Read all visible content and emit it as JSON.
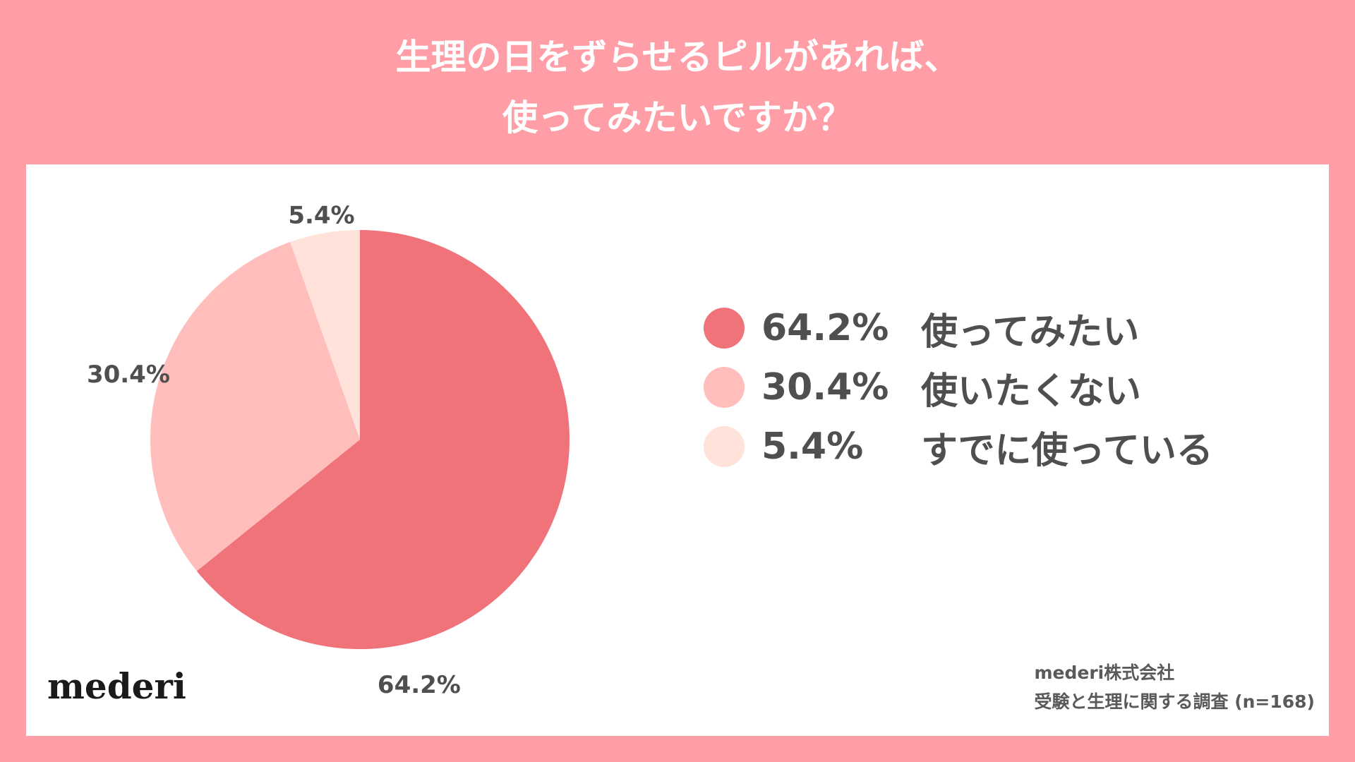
{
  "title": {
    "line1": "生理の日をずらせるピルがあれば、",
    "line2": "使ってみたいですか？"
  },
  "chart_data": {
    "type": "pie",
    "title": "生理の日をずらせるピルがあれば、使ってみたいですか？",
    "slices": [
      {
        "label": "使ってみたい",
        "value": 64.2,
        "display": "64.2%",
        "color": "#f0737a"
      },
      {
        "label": "使いたくない",
        "value": 30.4,
        "display": "30.4%",
        "color": "#ffbebc"
      },
      {
        "label": "すでに使っている",
        "value": 5.4,
        "display": "5.4%",
        "color": "#ffe2d9"
      }
    ],
    "legend_position": "right"
  },
  "branding": {
    "logo": "mederi"
  },
  "source": {
    "line1": "mederi株式会社",
    "line2": "受験と生理に関する調査 (n=168)"
  }
}
